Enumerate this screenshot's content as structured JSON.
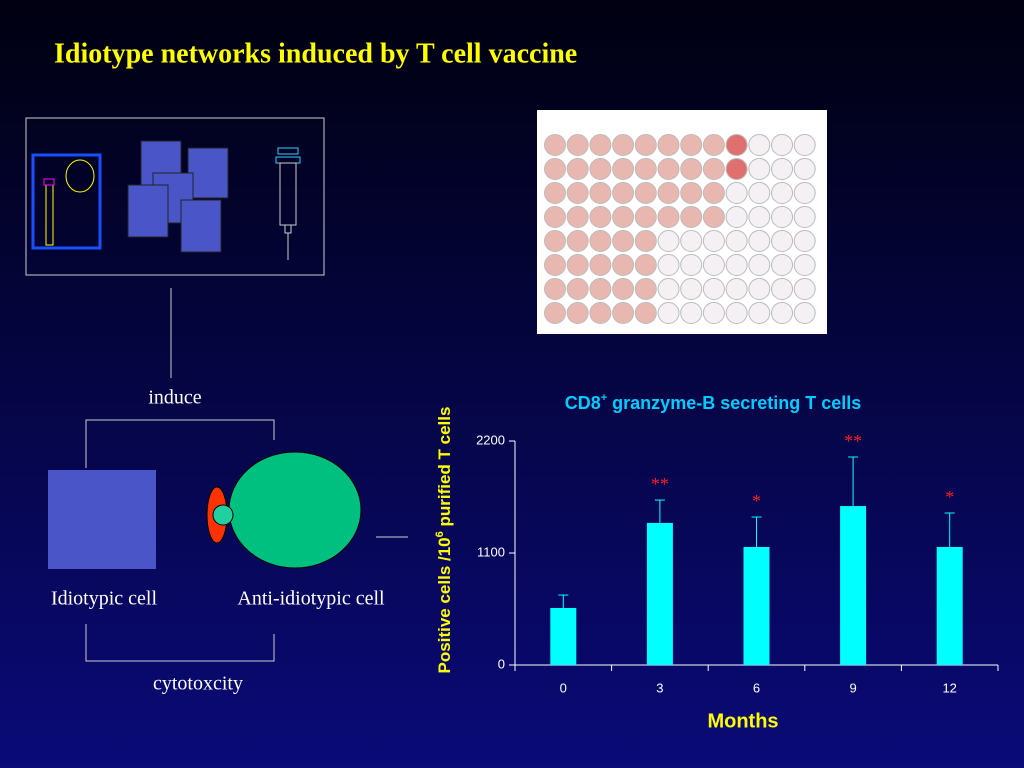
{
  "title": "Idiotype networks induced by T cell vaccine",
  "diagram": {
    "induce": "induce",
    "idiotypic_cell": "Idiotypic cell",
    "anti_idiotypic_cell": "Anti-idiotypic cell",
    "cytotoxicity": "cytotoxcity"
  },
  "chart_data": {
    "type": "bar",
    "title_parts": [
      "CD8",
      "+",
      " granzyme-B secreting T cells"
    ],
    "ylabel_parts": [
      "Positive cells /10",
      "6",
      " purified T cells"
    ],
    "xlabel": "Months",
    "categories": [
      "0",
      "3",
      "6",
      "9",
      "12"
    ],
    "values": [
      560,
      1395,
      1159,
      1561,
      1159
    ],
    "errors": [
      127,
      225,
      294,
      482,
      334
    ],
    "significance": [
      null,
      "**",
      "*",
      "**",
      "*"
    ],
    "color": "#00ffff",
    "ylim": [
      0,
      2200
    ],
    "yticks": [
      0,
      1100,
      2200
    ]
  }
}
